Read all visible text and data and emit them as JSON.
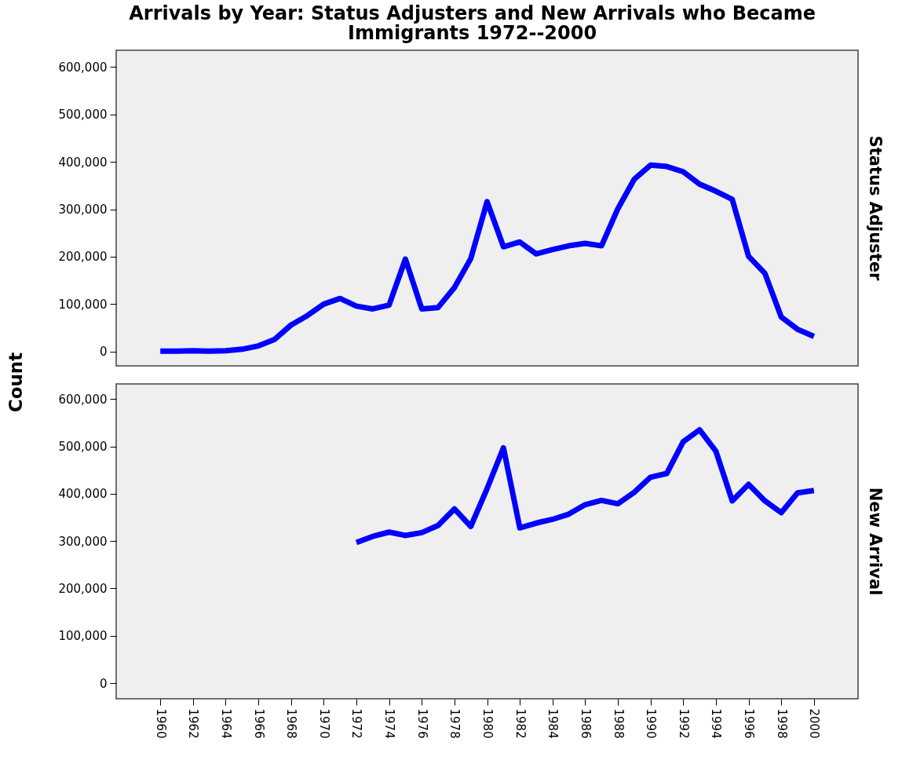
{
  "chart_data": [
    {
      "type": "line",
      "title": "Arrivals by Year: Status Adjusters and New Arrivals who Became Immigrants 1972--2000",
      "ylabel": "Count",
      "xlim": [
        1957.3,
        2002.7
      ],
      "ylim": [
        -30000,
        635000
      ],
      "yticks": [
        0,
        {
          "value": 100000,
          "label": "100,000"
        },
        {
          "value": 200000,
          "label": "200,000"
        },
        {
          "value": 300000,
          "label": "300,000"
        },
        {
          "value": 400000,
          "label": "400,000"
        },
        {
          "value": 500000,
          "label": "500,000"
        },
        {
          "value": 600000,
          "label": "600,000"
        }
      ],
      "xticks": [
        1960,
        1962,
        1964,
        1966,
        1968,
        1970,
        1972,
        1974,
        1976,
        1978,
        1980,
        1982,
        1984,
        1986,
        1988,
        1990,
        1992,
        1994,
        1996,
        1998,
        2000
      ],
      "tick_labels": "y",
      "grid": false,
      "line_style": "solid",
      "marker": "none",
      "series": [
        {
          "name": "Status Adjuster",
          "color": "#0000ff",
          "x": [
            1960,
            1961,
            1962,
            1963,
            1964,
            1965,
            1966,
            1967,
            1968,
            1969,
            1970,
            1971,
            1972,
            1973,
            1974,
            1975,
            1976,
            1977,
            1978,
            1979,
            1980,
            1981,
            1982,
            1983,
            1984,
            1985,
            1986,
            1987,
            1988,
            1989,
            1990,
            1991,
            1992,
            1993,
            1994,
            1995,
            1996,
            1997,
            1998,
            1999,
            2000
          ],
          "values": [
            1000,
            1000,
            2000,
            1000,
            2000,
            5000,
            12000,
            26000,
            56000,
            76000,
            100000,
            112000,
            96000,
            90000,
            98000,
            195000,
            90000,
            93000,
            135000,
            196000,
            316000,
            221000,
            231000,
            206000,
            215000,
            223000,
            228000,
            223000,
            301000,
            363000,
            393000,
            390000,
            379000,
            353000,
            338000,
            321000,
            201000,
            165000,
            73000,
            47000,
            32000
          ]
        }
      ]
    },
    {
      "type": "line",
      "xlim": [
        1957.3,
        2002.7
      ],
      "ylim": [
        -33000,
        632000
      ],
      "yticks": [
        0,
        {
          "value": 100000,
          "label": "100,000"
        },
        {
          "value": 200000,
          "label": "200,000"
        },
        {
          "value": 300000,
          "label": "300,000"
        },
        {
          "value": 400000,
          "label": "400,000"
        },
        {
          "value": 500000,
          "label": "500,000"
        },
        {
          "value": 600000,
          "label": "600,000"
        }
      ],
      "xticks": [
        1960,
        1962,
        1964,
        1966,
        1968,
        1970,
        1972,
        1974,
        1976,
        1978,
        1980,
        1982,
        1984,
        1986,
        1988,
        1990,
        1992,
        1994,
        1996,
        1998,
        2000
      ],
      "grid": false,
      "line_style": "solid",
      "marker": "none",
      "series": [
        {
          "name": "New Arrival",
          "color": "#0000ff",
          "x": [
            1972,
            1973,
            1974,
            1975,
            1976,
            1977,
            1978,
            1979,
            1980,
            1981,
            1982,
            1983,
            1984,
            1985,
            1986,
            1987,
            1988,
            1989,
            1990,
            1991,
            1992,
            1993,
            1994,
            1995,
            1996,
            1997,
            1998,
            1999,
            2000
          ],
          "values": [
            297000,
            310000,
            319000,
            312000,
            318000,
            333000,
            368000,
            331000,
            411000,
            497000,
            328000,
            338000,
            346000,
            357000,
            377000,
            386000,
            379000,
            403000,
            435000,
            443000,
            510000,
            535000,
            490000,
            385000,
            420000,
            385000,
            360000,
            402000,
            407000
          ]
        }
      ]
    }
  ]
}
